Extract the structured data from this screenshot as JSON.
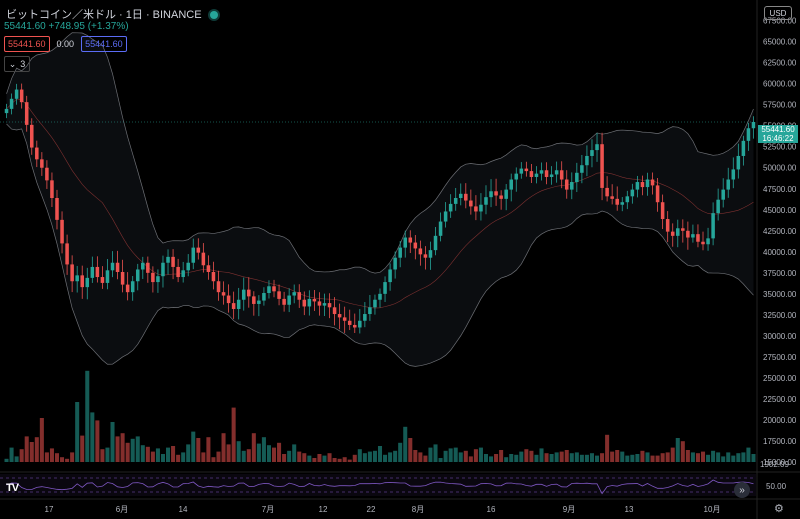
{
  "header": {
    "title": "ビットコイン／米ドル · 1日 · BINANCE",
    "change": "55441.60 +748.95 (+1.37%)",
    "input1": "55441.60",
    "input2": "0.00",
    "input3": "55441.60",
    "collapse_count": "3",
    "currency": "USD"
  },
  "price_label": {
    "price": "55441.60",
    "time": "16:46:22"
  },
  "colors": {
    "up": "#26a69a",
    "down": "#ef5350",
    "band": "#b2b5be",
    "basis": "#ef5350",
    "rsi": "#7e57c2"
  },
  "icons": {
    "logo": "tradingview-logo-icon",
    "ff": "fast-forward-icon",
    "gear": "gear-icon"
  },
  "logo_text": "TV",
  "ff_glyph": "»",
  "gear_glyph": "⚙",
  "chart_data": {
    "type": "candlestick",
    "y_axis_ticks": [
      "67500.00",
      "65000.00",
      "62500.00",
      "60000.00",
      "57500.00",
      "55000.00",
      "52500.00",
      "50000.00",
      "47500.00",
      "45000.00",
      "42500.00",
      "40000.00",
      "37500.00",
      "35000.00",
      "32500.00",
      "30000.00",
      "27500.00",
      "25000.00",
      "22500.00",
      "20000.00",
      "17500.00",
      "15000.00"
    ],
    "ylim": [
      15000,
      69000
    ],
    "x_axis_labels": [
      "17",
      "6月",
      "14",
      "7月",
      "12",
      "22",
      "8月",
      "16",
      "9月",
      "13",
      "10月"
    ],
    "last_price": 55441.6,
    "volume_ticks": [
      "1902.09"
    ],
    "rsi_ticks": [
      "50.00"
    ],
    "close_series": [
      57000,
      58200,
      59300,
      57800,
      55100,
      52400,
      51000,
      50000,
      48500,
      46400,
      43800,
      41000,
      38500,
      36500,
      37200,
      35800,
      36900,
      38200,
      37000,
      36300,
      37800,
      38700,
      37600,
      36100,
      35200,
      36500,
      37900,
      38700,
      37500,
      36400,
      37100,
      38700,
      39400,
      38200,
      37000,
      37800,
      38700,
      40500,
      39900,
      38400,
      37600,
      36500,
      35200,
      34800,
      33900,
      33200,
      34300,
      35500,
      34700,
      33800,
      34200,
      35100,
      35900,
      35300,
      34400,
      33700,
      34800,
      35200,
      34300,
      33500,
      34400,
      34100,
      33600,
      33900,
      33400,
      32600,
      32200,
      31800,
      31300,
      31000,
      31800,
      32600,
      33400,
      34300,
      35000,
      36400,
      37900,
      39300,
      40500,
      41700,
      41100,
      40400,
      39700,
      39300,
      40200,
      41900,
      43600,
      44800,
      45700,
      46400,
      46900,
      46100,
      45400,
      44800,
      45600,
      46500,
      47200,
      46700,
      46300,
      47400,
      48600,
      49300,
      49900,
      49600,
      48900,
      49300,
      49700,
      48900,
      49200,
      49700,
      48600,
      47400,
      48300,
      49400,
      50300,
      51400,
      52100,
      52800,
      47600,
      46600,
      46300,
      45600,
      45900,
      46600,
      47400,
      48300,
      47700,
      48600,
      47900,
      45900,
      43900,
      42400,
      41900,
      42800,
      42500,
      41700,
      42100,
      41200,
      40900,
      41600,
      44600,
      46200,
      47400,
      48600,
      49800,
      51400,
      53200,
      54700,
      55441.6
    ],
    "volume_series": [
      15400,
      16800,
      15700,
      16600,
      18200,
      17500,
      18100,
      20500,
      16200,
      16700,
      16100,
      15600,
      15400,
      16200,
      22500,
      18300,
      26400,
      21200,
      20200,
      16600,
      16800,
      20000,
      18200,
      18600,
      17400,
      17900,
      18200,
      17100,
      16900,
      16300,
      16700,
      16000,
      16800,
      17000,
      15900,
      16200,
      17200,
      18800,
      18000,
      16200,
      18100,
      15600,
      16300,
      18600,
      17200,
      21800,
      17600,
      16400,
      16600,
      18600,
      17300,
      18100,
      17100,
      16800,
      17400,
      16000,
      16400,
      17200,
      16300,
      16100,
      15800,
      15500,
      16000,
      15800,
      16100,
      15500,
      15400,
      15600,
      15300,
      15900,
      16600,
      16100,
      16300,
      16400,
      17000,
      15900,
      16200,
      16400,
      17400,
      19400,
      18000,
      16500,
      16200,
      15800,
      16800,
      17200,
      15500,
      16400,
      16700,
      16800,
      16200,
      16400,
      15700,
      16600,
      16800,
      16000,
      15700,
      16000,
      16500,
      15600,
      16000,
      15900,
      16300,
      16600,
      16400,
      15900,
      16700,
      16100,
      16000,
      16200,
      16300,
      16500,
      16100,
      16200,
      15900,
      15900,
      16100,
      15800,
      16100,
      18400,
      16300,
      16500,
      16300,
      15800,
      15900,
      16000,
      16400,
      16200,
      15800,
      15800,
      16100,
      16200,
      16800,
      18000,
      17600,
      16500,
      16200,
      16100,
      16300,
      15900,
      16400,
      16200,
      15700,
      16200,
      15800,
      16100,
      16200,
      16800,
      16000
    ]
  }
}
